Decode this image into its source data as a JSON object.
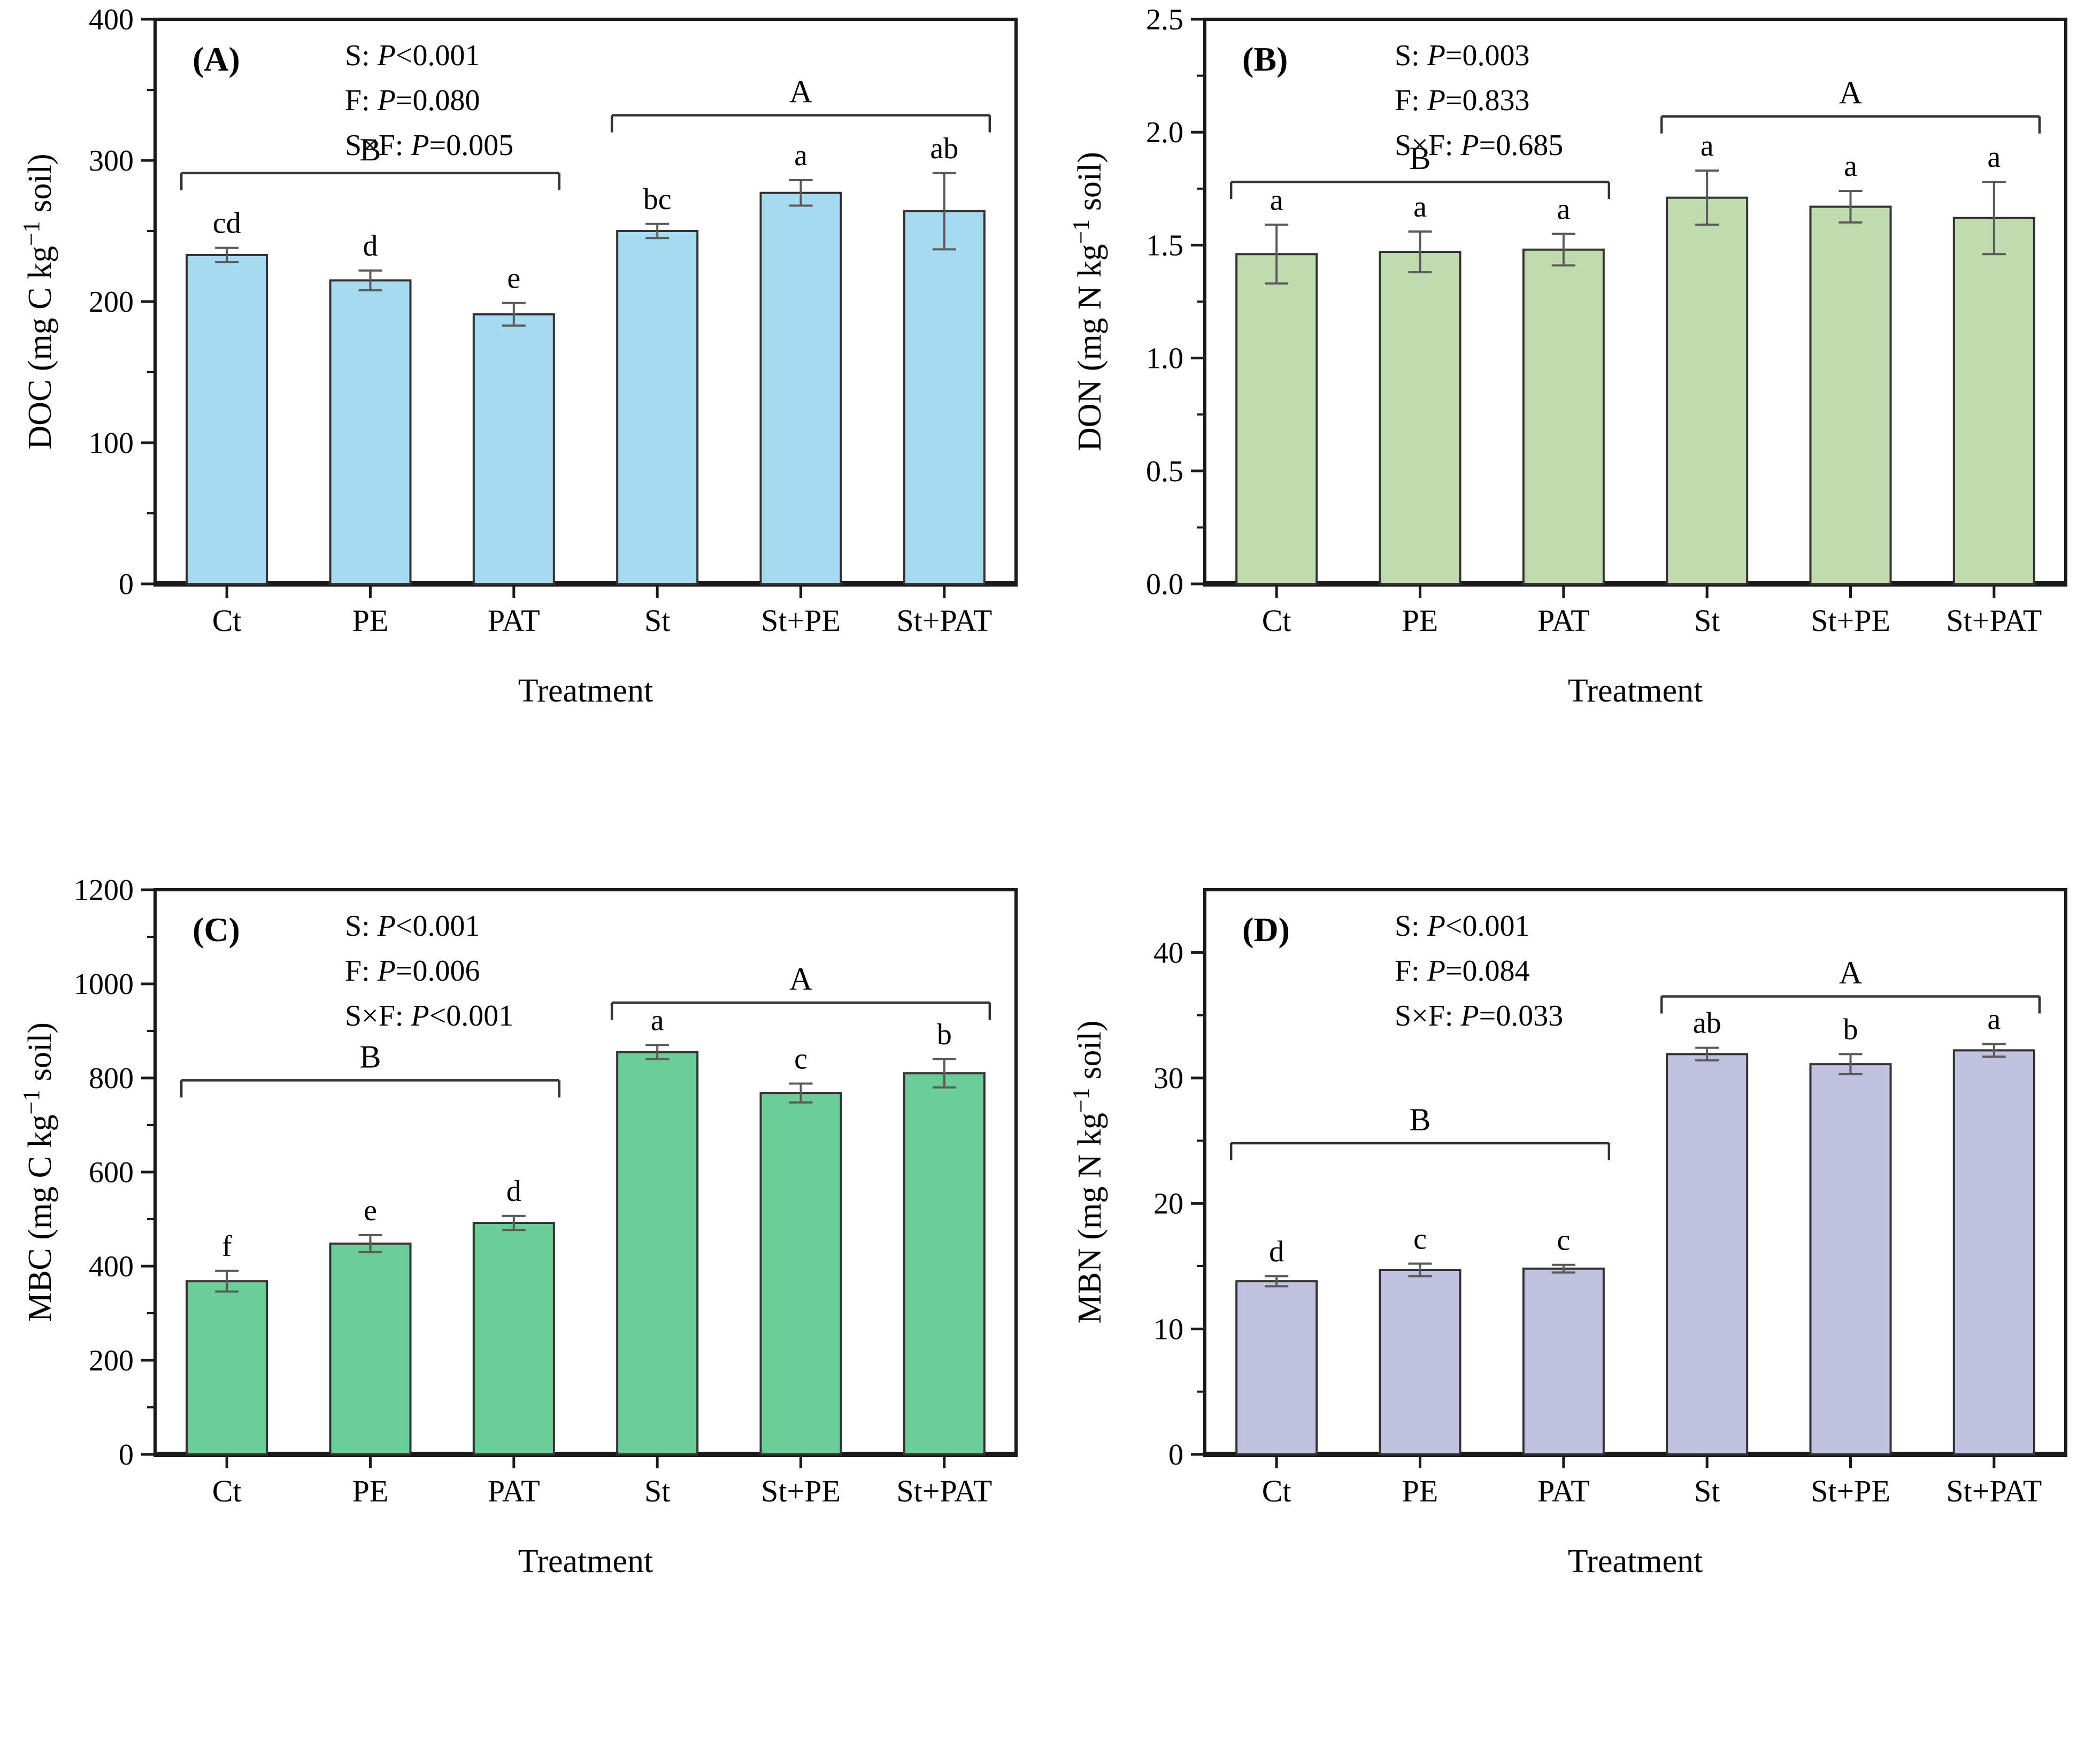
{
  "figure": {
    "description": "Four-panel bar figure of soil properties under six treatments",
    "x_axis_title": "Treatment",
    "categories": [
      "Ct",
      "PE",
      "PAT",
      "St",
      "St+PE",
      "St+PAT"
    ]
  },
  "style": {
    "bar_outline": "#333333",
    "error_color": "#5a5a5a",
    "axis_color": "#1a1a1a",
    "text_color": "#000000",
    "background": "#ffffff"
  },
  "chart_data": [
    {
      "type": "bar",
      "panel_label": "(A)",
      "ylabel": {
        "pre": "DOC (mg C kg",
        "sup": "−1",
        "post": " soil)"
      },
      "xlabel": "Treatment",
      "categories": [
        "Ct",
        "PE",
        "PAT",
        "St",
        "St+PE",
        "St+PAT"
      ],
      "values": [
        233,
        215,
        191,
        250,
        277,
        264
      ],
      "errors": [
        5,
        7,
        8,
        5,
        9,
        27
      ],
      "letters": [
        "cd",
        "d",
        "e",
        "bc",
        "a",
        "ab"
      ],
      "ylim": [
        0,
        400
      ],
      "yticks": [
        0,
        100,
        200,
        300,
        400
      ],
      "minor_step": 50,
      "tick_decimals": 0,
      "grid": false,
      "bar_color": "#a5dbf1",
      "stats": [
        {
          "factor": "S",
          "p": "P",
          "rel": "<",
          "value": "0.001"
        },
        {
          "factor": "F",
          "p": "P",
          "rel": "=",
          "value": "0.080"
        },
        {
          "factor": "S×F",
          "p": "P",
          "rel": "=",
          "value": "0.005"
        }
      ],
      "group_brackets": [
        {
          "label": "B",
          "start": 0,
          "end": 2,
          "y": 291
        },
        {
          "label": "A",
          "start": 3,
          "end": 5,
          "y": 332
        }
      ]
    },
    {
      "type": "bar",
      "panel_label": "(B)",
      "ylabel": {
        "pre": "DON (mg N kg",
        "sup": "−1",
        "post": " soil)"
      },
      "xlabel": "Treatment",
      "categories": [
        "Ct",
        "PE",
        "PAT",
        "St",
        "St+PE",
        "St+PAT"
      ],
      "values": [
        1.46,
        1.47,
        1.48,
        1.71,
        1.67,
        1.62
      ],
      "errors": [
        0.13,
        0.09,
        0.07,
        0.12,
        0.07,
        0.16
      ],
      "letters": [
        "a",
        "a",
        "a",
        "a",
        "a",
        "a"
      ],
      "ylim": [
        0,
        2.5
      ],
      "yticks": [
        0,
        0.5,
        1.0,
        1.5,
        2.0,
        2.5
      ],
      "minor_step": 0.25,
      "tick_decimals": 1,
      "grid": false,
      "bar_color": "#c0dcae",
      "stats": [
        {
          "factor": "S",
          "p": "P",
          "rel": "=",
          "value": "0.003"
        },
        {
          "factor": "F",
          "p": "P",
          "rel": "=",
          "value": "0.833"
        },
        {
          "factor": "S×F",
          "p": "P",
          "rel": "=",
          "value": "0.685"
        }
      ],
      "group_brackets": [
        {
          "label": "B",
          "start": 0,
          "end": 2,
          "y": 1.78
        },
        {
          "label": "A",
          "start": 3,
          "end": 5,
          "y": 2.07
        }
      ]
    },
    {
      "type": "bar",
      "panel_label": "(C)",
      "ylabel": {
        "pre": "MBC (mg C kg",
        "sup": "−1",
        "post": " soil)"
      },
      "xlabel": "Treatment",
      "categories": [
        "Ct",
        "PE",
        "PAT",
        "St",
        "St+PE",
        "St+PAT"
      ],
      "values": [
        368,
        448,
        492,
        855,
        768,
        810
      ],
      "errors": [
        22,
        18,
        15,
        15,
        20,
        30
      ],
      "letters": [
        "f",
        "e",
        "d",
        "a",
        "c",
        "b"
      ],
      "ylim": [
        0,
        1200
      ],
      "yticks": [
        0,
        200,
        400,
        600,
        800,
        1000,
        1200
      ],
      "minor_step": 100,
      "tick_decimals": 0,
      "grid": false,
      "bar_color": "#6bce96",
      "stats": [
        {
          "factor": "S",
          "p": "P",
          "rel": "<",
          "value": "0.001"
        },
        {
          "factor": "F",
          "p": "P",
          "rel": "=",
          "value": "0.006"
        },
        {
          "factor": "S×F",
          "p": "P",
          "rel": "<",
          "value": "0.001"
        }
      ],
      "group_brackets": [
        {
          "label": "B",
          "start": 0,
          "end": 2,
          "y": 795
        },
        {
          "label": "A",
          "start": 3,
          "end": 5,
          "y": 960
        }
      ]
    },
    {
      "type": "bar",
      "panel_label": "(D)",
      "ylabel": {
        "pre": "MBN (mg N kg",
        "sup": "−1",
        "post": " soil)"
      },
      "xlabel": "Treatment",
      "categories": [
        "Ct",
        "PE",
        "PAT",
        "St",
        "St+PE",
        "St+PAT"
      ],
      "values": [
        13.8,
        14.7,
        14.8,
        31.9,
        31.1,
        32.2
      ],
      "errors": [
        0.4,
        0.5,
        0.3,
        0.5,
        0.8,
        0.5
      ],
      "letters": [
        "d",
        "c",
        "c",
        "ab",
        "b",
        "a"
      ],
      "ylim": [
        0,
        45
      ],
      "yticks": [
        0,
        10,
        20,
        30,
        40
      ],
      "minor_step": 5,
      "tick_decimals": 0,
      "grid": false,
      "bar_color": "#c1c2e0",
      "stats": [
        {
          "factor": "S",
          "p": "P",
          "rel": "<",
          "value": "0.001"
        },
        {
          "factor": "F",
          "p": "P",
          "rel": "=",
          "value": "0.084"
        },
        {
          "factor": "S×F",
          "p": "P",
          "rel": "=",
          "value": "0.033"
        }
      ],
      "group_brackets": [
        {
          "label": "B",
          "start": 0,
          "end": 2,
          "y": 24.8
        },
        {
          "label": "A",
          "start": 3,
          "end": 5,
          "y": 36.5
        }
      ]
    }
  ]
}
